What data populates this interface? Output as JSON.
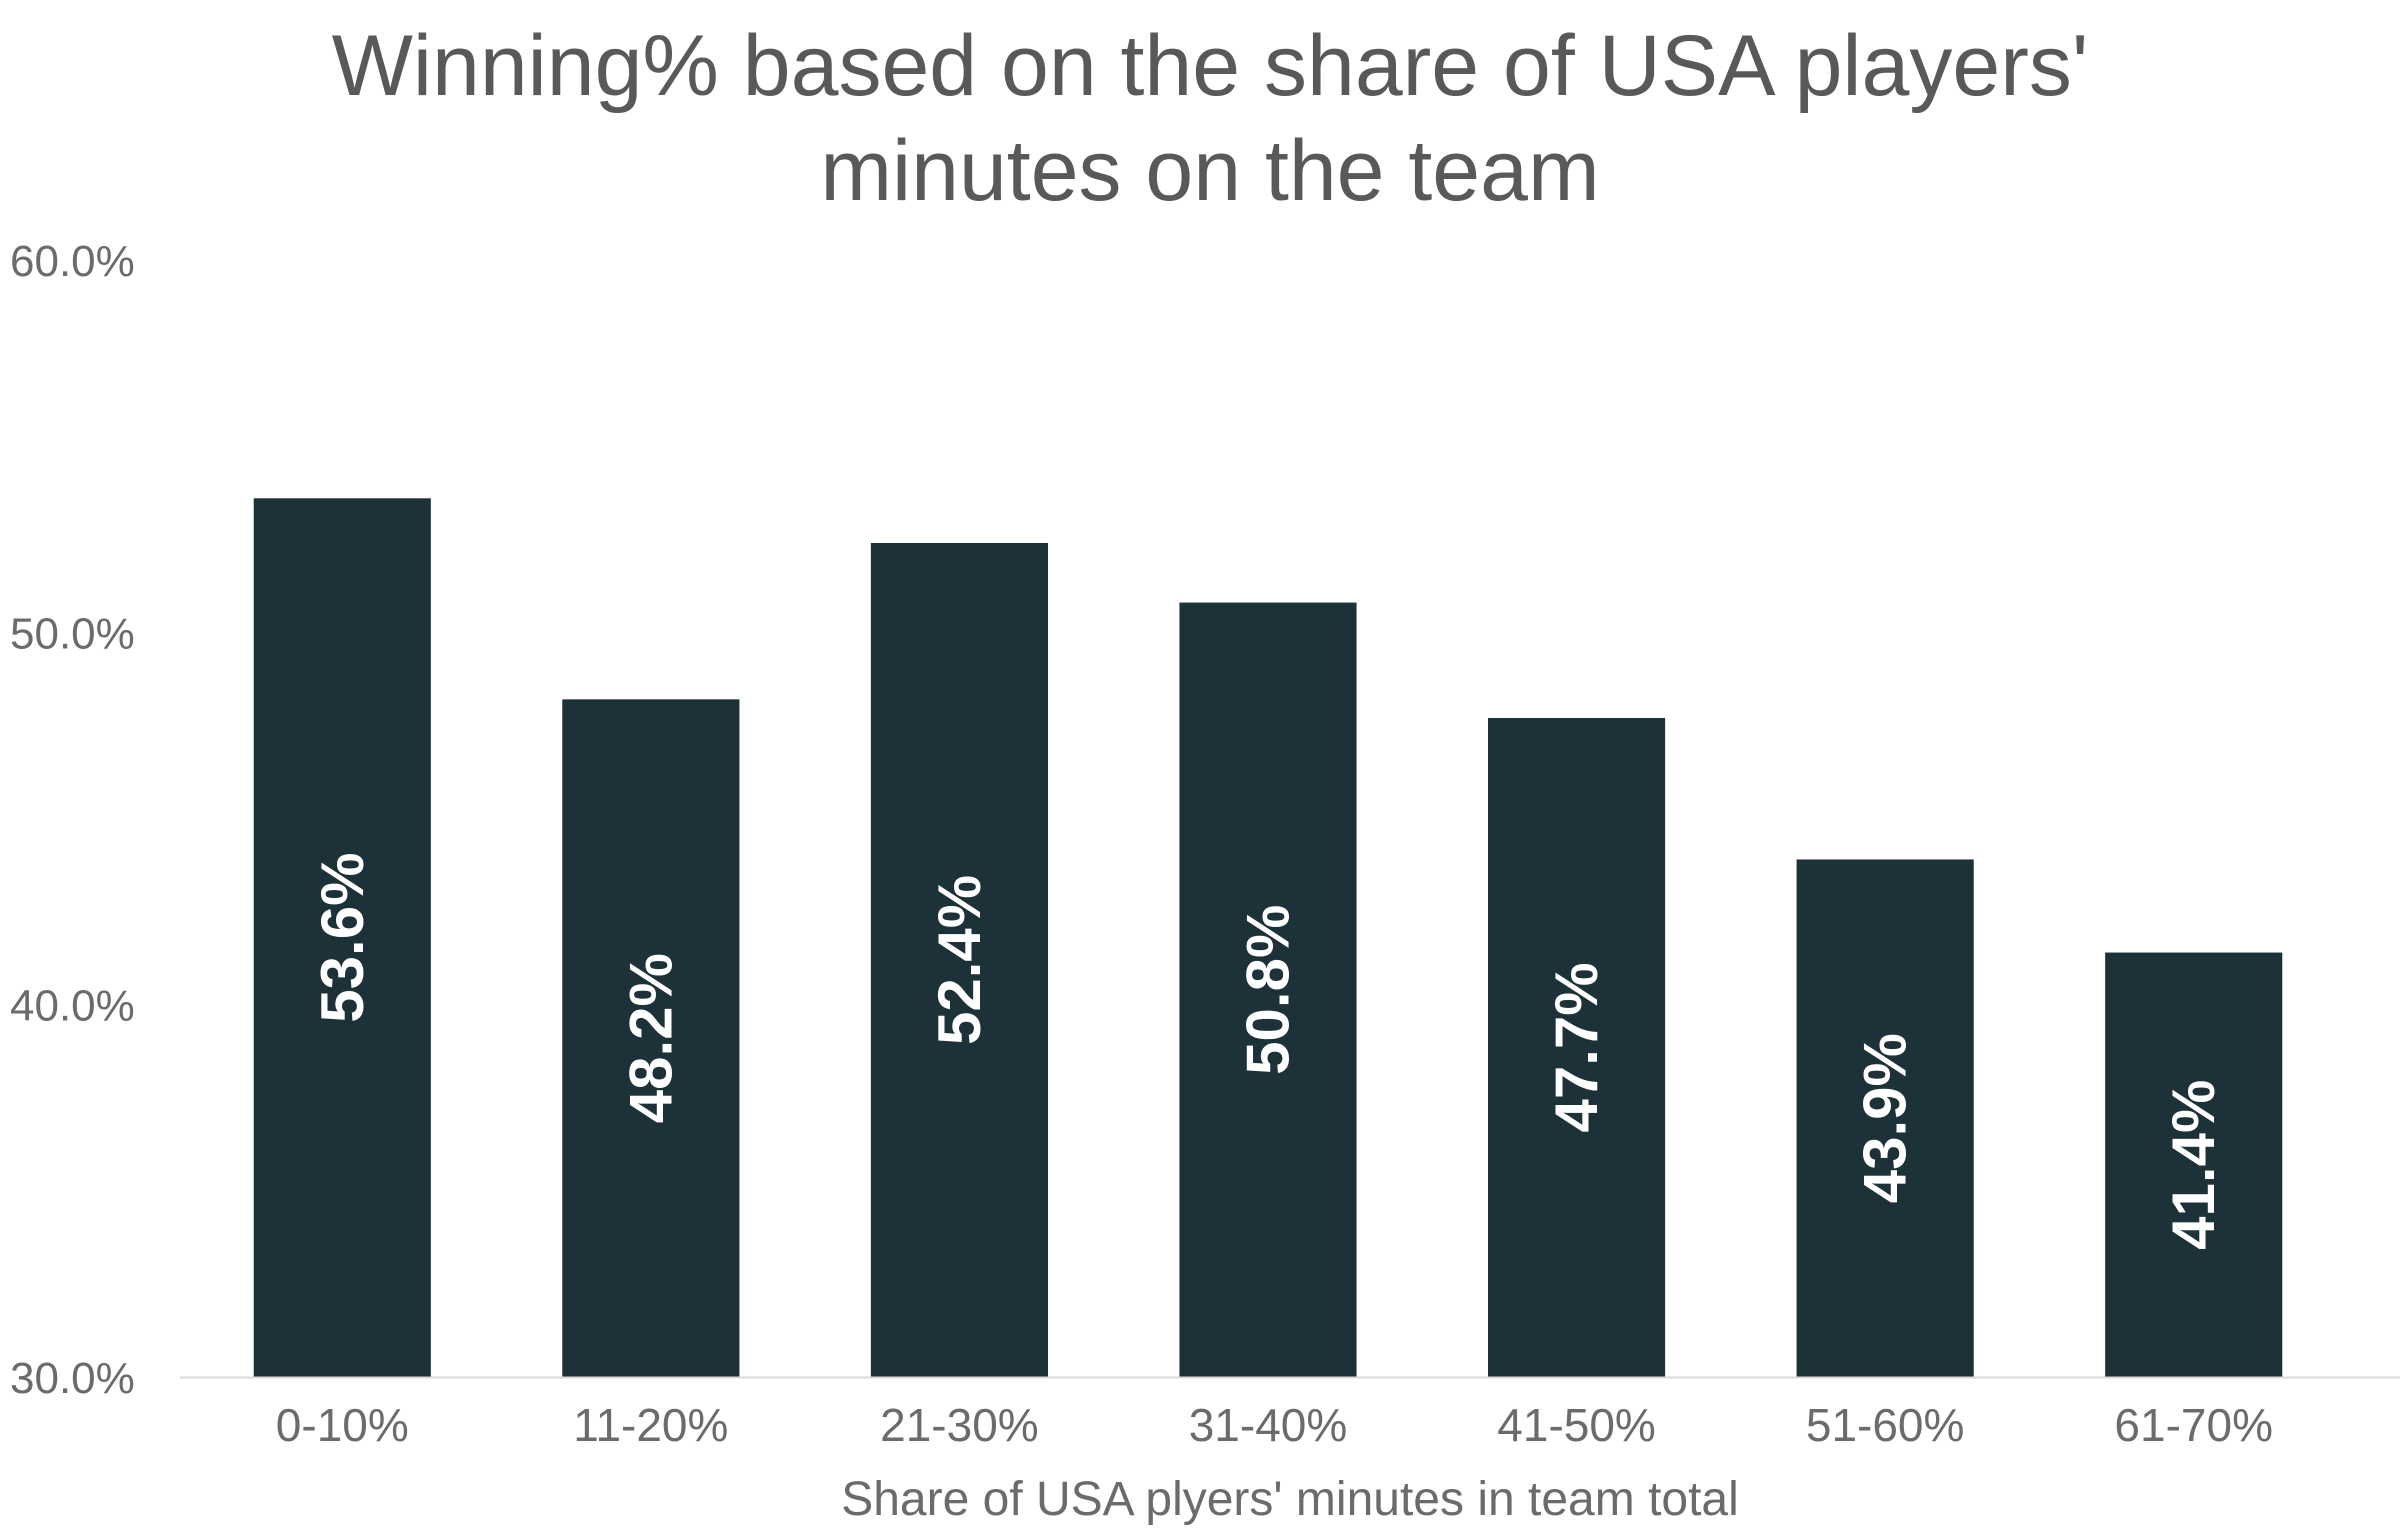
{
  "chart_data": {
    "type": "bar",
    "title_lines": [
      "Winning% based on the share of USA players'",
      "minutes on the team"
    ],
    "xlabel": "Share of USA plyers' minutes in team total",
    "ylabel": "",
    "ylim": [
      30,
      60
    ],
    "yticks": [
      30,
      40,
      50,
      60
    ],
    "ytick_labels": [
      "30.0%",
      "40.0%",
      "50.0%",
      "60.0%"
    ],
    "categories": [
      "0-10%",
      "11-20%",
      "21-30%",
      "31-40%",
      "41-50%",
      "51-60%",
      "61-70%"
    ],
    "values": [
      53.6,
      48.2,
      52.4,
      50.8,
      47.7,
      43.9,
      41.4
    ],
    "data_labels": [
      "53.6%",
      "48.2%",
      "52.4%",
      "50.8%",
      "47.7%",
      "43.9%",
      "41.4%"
    ],
    "grid": false,
    "legend": "none",
    "colors": {
      "bar": "#1c3238",
      "bar_label": "#ffffff",
      "axis_line": "#d9d9d9",
      "text": "#6b6b6b",
      "title": "#595959"
    }
  }
}
